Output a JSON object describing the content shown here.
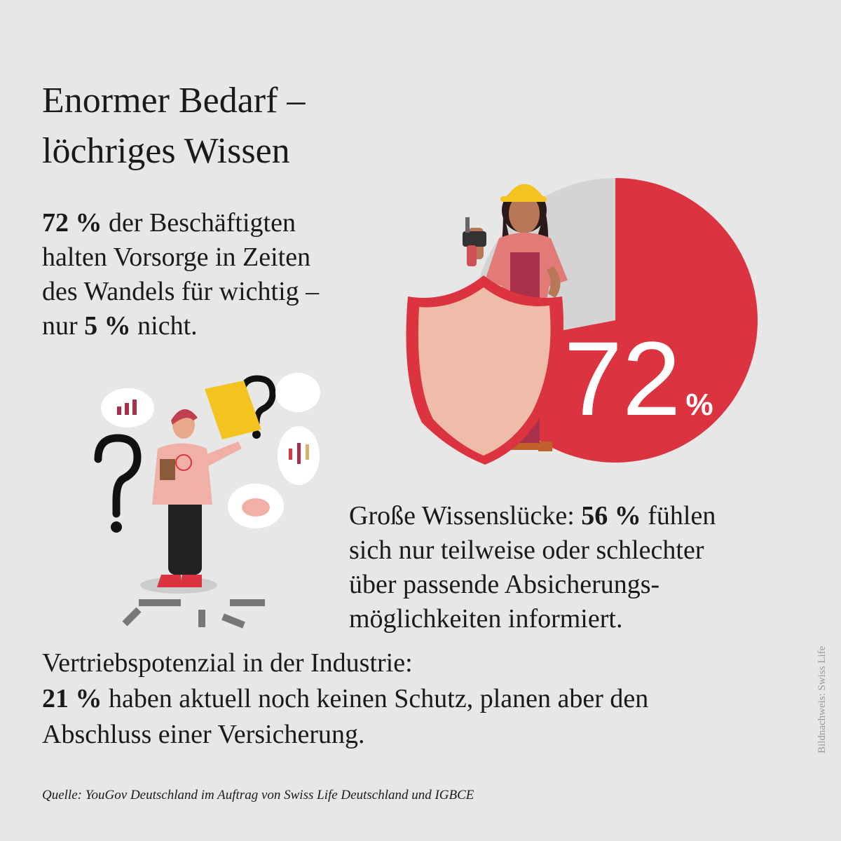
{
  "title": [
    "Enormer Bedarf –",
    "löchriges Wissen"
  ],
  "intro": [
    [
      {
        "t": "72 %",
        "b": true
      },
      {
        "t": " der Beschäftigten",
        "b": false
      }
    ],
    [
      {
        "t": "halten Vorsorge in Zeiten",
        "b": false
      }
    ],
    [
      {
        "t": "des Wandels für wichtig –",
        "b": false
      }
    ],
    [
      {
        "t": "nur ",
        "b": false
      },
      {
        "t": "5 %",
        "b": true
      },
      {
        "t": " nicht.",
        "b": false
      }
    ]
  ],
  "gap": [
    [
      {
        "t": "Große Wissenslücke: ",
        "b": false
      },
      {
        "t": "56 %",
        "b": true
      },
      {
        "t": " fühlen",
        "b": false
      }
    ],
    [
      {
        "t": "sich nur teilweise oder schlechter",
        "b": false
      }
    ],
    [
      {
        "t": "über passende Absicherungs-",
        "b": false
      }
    ],
    [
      {
        "t": "möglichkeiten informiert.",
        "b": false
      }
    ]
  ],
  "potential": [
    [
      {
        "t": "Vertriebspotenzial in der Industrie:",
        "b": false
      }
    ],
    [
      {
        "t": "21 %",
        "b": true
      },
      {
        "t": " haben aktuell noch keinen Schutz, planen aber den",
        "b": false
      }
    ],
    [
      {
        "t": "Abschluss einer Versicherung.",
        "b": false
      }
    ]
  ],
  "pie": {
    "value": 72,
    "total": 100,
    "unit": "%",
    "color": "#dc3340",
    "rest_color": "#d4d4d4"
  },
  "source": "Quelle: YouGov Deutschland im Auftrag von Swiss Life Deutschland und IGBCE",
  "credit": "Bildnachweis: Swiss Life"
}
